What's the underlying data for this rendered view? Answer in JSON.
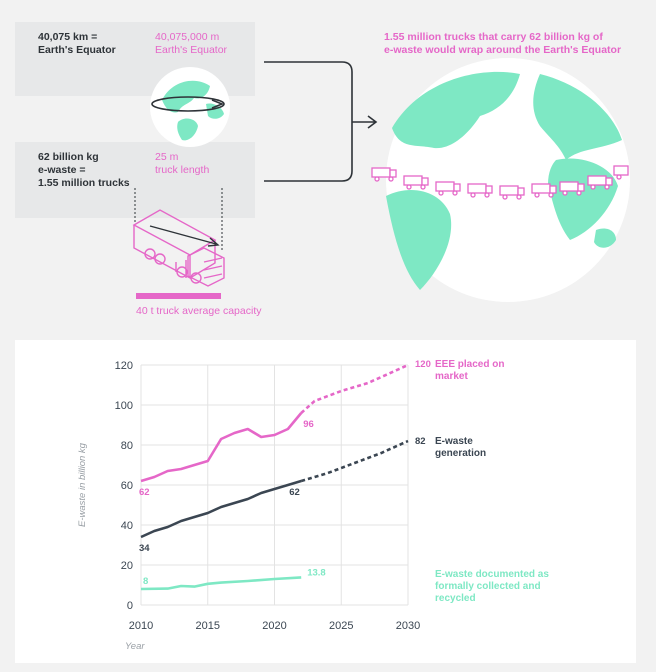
{
  "infographic": {
    "equator_km": "40,075 km =\nEarth's Equator",
    "equator_m": "40,075,000 m\nEarth's Equator",
    "ewaste_trucks": "62 billion kg\ne-waste =\n1.55 million trucks",
    "truck_length": "25 m\ntruck length",
    "truck_capacity": "40 t truck average capacity",
    "headline": "1.55 million trucks that carry 62 billion kg of\ne-waste would wrap around the Earth's Equator",
    "colors": {
      "pink": "#e567c8",
      "mint": "#7ee8c4",
      "dark": "#2e3338",
      "box": "#e7e8e9"
    }
  },
  "chart_data": {
    "type": "line",
    "x_range": [
      2010,
      2030
    ],
    "y_range": [
      0,
      120
    ],
    "x_ticks": [
      "2010",
      "2015",
      "2020",
      "2025",
      "2030"
    ],
    "y_ticks": [
      "0",
      "20",
      "40",
      "60",
      "80",
      "100",
      "120"
    ],
    "xlabel": "Year",
    "ylabel": "E-waste in billion kg",
    "grid": true,
    "series": [
      {
        "name": "EEE placed on market",
        "label_lines": [
          "EEE placed on",
          "market"
        ],
        "color": "#e567c8",
        "actual": [
          [
            2010,
            62
          ],
          [
            2011,
            64
          ],
          [
            2012,
            67
          ],
          [
            2013,
            68
          ],
          [
            2014,
            70
          ],
          [
            2015,
            72
          ],
          [
            2016,
            83
          ],
          [
            2017,
            86
          ],
          [
            2018,
            88
          ],
          [
            2019,
            84
          ],
          [
            2020,
            85
          ],
          [
            2021,
            88
          ],
          [
            2022,
            96
          ]
        ],
        "projected": [
          [
            2022,
            96
          ],
          [
            2023,
            102
          ],
          [
            2025,
            107
          ],
          [
            2027,
            111
          ],
          [
            2030,
            120
          ]
        ],
        "value_labels": [
          {
            "x": 2010,
            "y": 62,
            "text": "62"
          },
          {
            "x": 2022,
            "y": 96,
            "text": "96"
          }
        ],
        "end_value": "120"
      },
      {
        "name": "E-waste generation",
        "label_lines": [
          "E-waste",
          "generation"
        ],
        "color": "#3b4652",
        "actual": [
          [
            2010,
            34
          ],
          [
            2011,
            37
          ],
          [
            2012,
            39
          ],
          [
            2013,
            42
          ],
          [
            2014,
            44
          ],
          [
            2015,
            46
          ],
          [
            2016,
            49
          ],
          [
            2017,
            51
          ],
          [
            2018,
            53
          ],
          [
            2019,
            56
          ],
          [
            2020,
            58
          ],
          [
            2021,
            60
          ],
          [
            2022,
            62
          ]
        ],
        "projected": [
          [
            2022,
            62
          ],
          [
            2024,
            66
          ],
          [
            2026,
            71
          ],
          [
            2028,
            76
          ],
          [
            2030,
            82
          ]
        ],
        "value_labels": [
          {
            "x": 2010,
            "y": 34,
            "text": "34"
          },
          {
            "x": 2022,
            "y": 62,
            "text": "62"
          }
        ],
        "end_value": "82"
      },
      {
        "name": "E-waste documented as formally collected and recycled",
        "label_lines": [
          "E-waste documented as",
          "formally collected and",
          "recycled"
        ],
        "color": "#7ee8c4",
        "actual": [
          [
            2010,
            8
          ],
          [
            2012,
            8.2
          ],
          [
            2013,
            9.5
          ],
          [
            2014,
            9.2
          ],
          [
            2015,
            10.6
          ],
          [
            2016,
            11.2
          ],
          [
            2018,
            12
          ],
          [
            2020,
            13
          ],
          [
            2022,
            13.8
          ]
        ],
        "projected": [],
        "value_labels": [
          {
            "x": 2010,
            "y": 8,
            "text": "8"
          },
          {
            "x": 2022,
            "y": 13.8,
            "text": "13.8"
          }
        ],
        "end_value": ""
      }
    ]
  }
}
